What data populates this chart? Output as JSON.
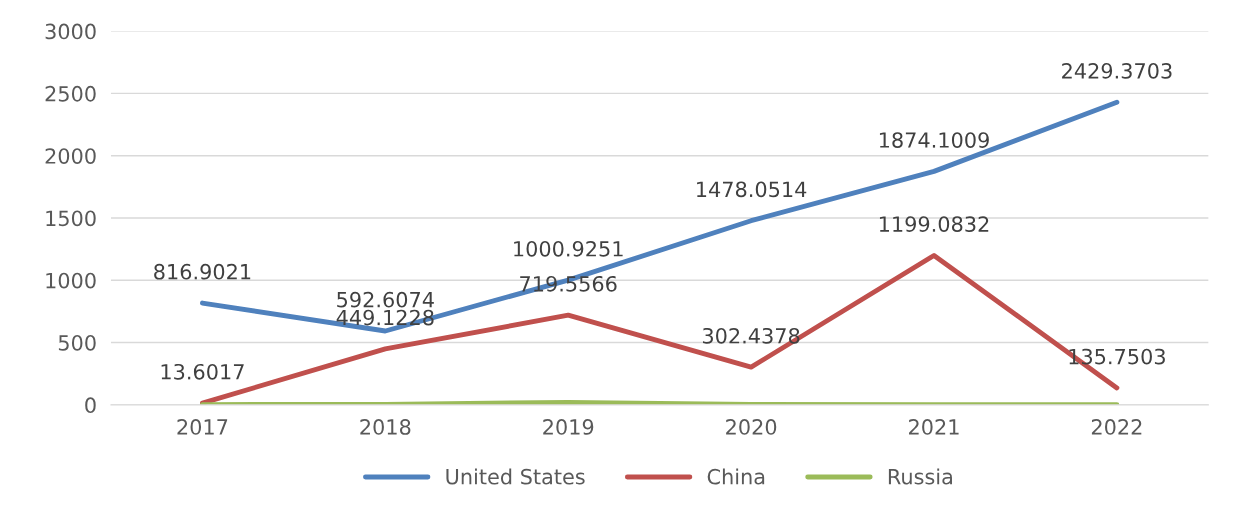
{
  "chart_data": {
    "type": "line",
    "categories": [
      "2017",
      "2018",
      "2019",
      "2020",
      "2021",
      "2022"
    ],
    "series": [
      {
        "name": "United States",
        "color": "#4f81bd",
        "values": [
          816.9021,
          592.6074,
          1000.9251,
          1478.0514,
          1874.1009,
          2429.3703
        ],
        "value_labels": [
          "816.9021",
          "592.6074",
          "1000.9251",
          "1478.0514",
          "1874.1009",
          "2429.3703"
        ]
      },
      {
        "name": "China",
        "color": "#c0504d",
        "values": [
          13.6017,
          449.1228,
          719.5566,
          302.4378,
          1199.0832,
          135.7503
        ],
        "value_labels": [
          "13.6017",
          "449.1228",
          "719.5566",
          "302.4378",
          "1199.0832",
          "135.7503"
        ]
      },
      {
        "name": "Russia",
        "color": "#9bbb59",
        "values": [
          2,
          3,
          20,
          4,
          2,
          2
        ]
      }
    ],
    "ylim": [
      0,
      3000
    ],
    "yticks": [
      0,
      500,
      1000,
      1500,
      2000,
      2500,
      3000
    ],
    "grid": "y",
    "legend": "bottom",
    "marker": "none",
    "line_style": "solid"
  }
}
